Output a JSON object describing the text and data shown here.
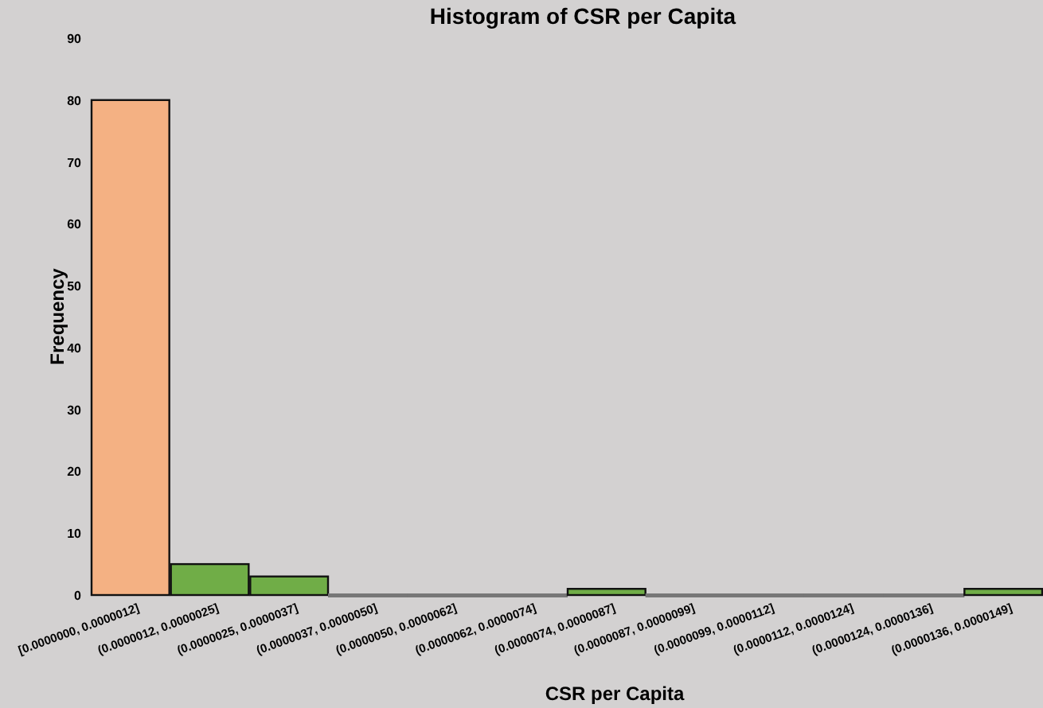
{
  "chart_data": {
    "type": "bar",
    "title": "Histogram of CSR per Capita",
    "xlabel": "CSR per Capita",
    "ylabel": "Frequency",
    "categories": [
      "[0.0000000, 0.0000012]",
      "(0.0000012, 0.0000025]",
      "(0.0000025, 0.0000037]",
      "(0.0000037, 0.0000050]",
      "(0.0000050, 0.0000062]",
      "(0.0000062, 0.0000074]",
      "(0.0000074, 0.0000087]",
      "(0.0000087, 0.0000099]",
      "(0.0000099, 0.0000112]",
      "(0.0000112, 0.0000124]",
      "(0.0000124, 0.0000136]",
      "(0.0000136, 0.0000149]"
    ],
    "values": [
      80,
      5,
      3,
      0,
      0,
      0,
      1,
      0,
      0,
      0,
      0,
      1
    ],
    "colors": [
      "#f4b183",
      "#70ad47",
      "#70ad47",
      "#70ad47",
      "#70ad47",
      "#70ad47",
      "#70ad47",
      "#70ad47",
      "#70ad47",
      "#70ad47",
      "#70ad47",
      "#70ad47"
    ],
    "ylim": [
      0,
      90
    ],
    "yticks": [
      0,
      10,
      20,
      30,
      40,
      50,
      60,
      70,
      80,
      90
    ]
  }
}
